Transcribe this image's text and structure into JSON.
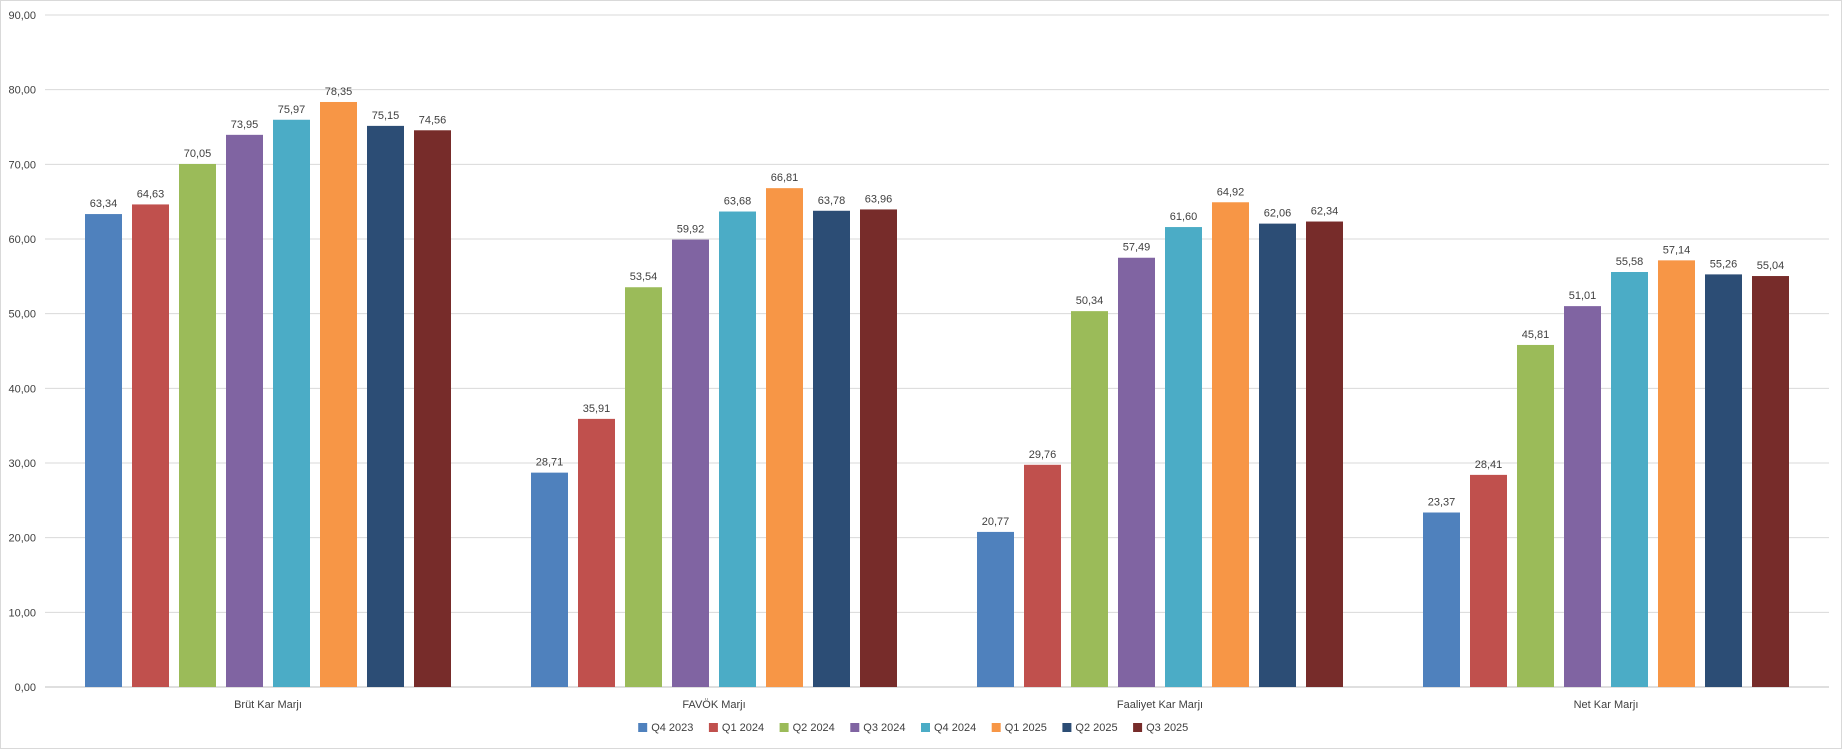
{
  "chart_data": {
    "type": "bar",
    "title": "",
    "xlabel": "",
    "ylabel": "",
    "ylim": [
      0,
      90
    ],
    "y_ticks": [
      "0,00",
      "10,00",
      "20,00",
      "30,00",
      "40,00",
      "50,00",
      "60,00",
      "70,00",
      "80,00",
      "90,00"
    ],
    "grid": true,
    "legend_position": "bottom",
    "categories": [
      "Brüt Kar Marjı",
      "FAVÖK Marjı",
      "Faaliyet Kar Marjı",
      "Net Kar Marjı"
    ],
    "series": [
      {
        "name": "Q4 2023",
        "color": "#4F81BD",
        "values": [
          63.34,
          28.71,
          20.77,
          23.37
        ],
        "labels": [
          "63,34",
          "28,71",
          "20,77",
          "23,37"
        ]
      },
      {
        "name": "Q1 2024",
        "color": "#C0504D",
        "values": [
          64.63,
          35.91,
          29.76,
          28.41
        ],
        "labels": [
          "64,63",
          "35,91",
          "29,76",
          "28,41"
        ]
      },
      {
        "name": "Q2 2024",
        "color": "#9BBB59",
        "values": [
          70.05,
          53.54,
          50.34,
          45.81
        ],
        "labels": [
          "70,05",
          "53,54",
          "50,34",
          "45,81"
        ]
      },
      {
        "name": "Q3 2024",
        "color": "#8064A2",
        "values": [
          73.95,
          59.92,
          57.49,
          51.01
        ],
        "labels": [
          "73,95",
          "59,92",
          "57,49",
          "51,01"
        ]
      },
      {
        "name": "Q4 2024",
        "color": "#4BACC6",
        "values": [
          75.97,
          63.68,
          61.6,
          55.58
        ],
        "labels": [
          "75,97",
          "63,68",
          "61,60",
          "55,58"
        ]
      },
      {
        "name": "Q1 2025",
        "color": "#F79646",
        "values": [
          78.35,
          66.81,
          64.92,
          57.14
        ],
        "labels": [
          "78,35",
          "66,81",
          "64,92",
          "57,14"
        ]
      },
      {
        "name": "Q2 2025",
        "color": "#2C4D75",
        "values": [
          75.15,
          63.78,
          62.06,
          55.26
        ],
        "labels": [
          "75,15",
          "63,78",
          "62,06",
          "55,26"
        ]
      },
      {
        "name": "Q3 2025",
        "color": "#772C2A",
        "values": [
          74.56,
          63.96,
          62.34,
          55.04
        ],
        "labels": [
          "74,56",
          "63,96",
          "62,34",
          "55,04"
        ]
      }
    ]
  }
}
